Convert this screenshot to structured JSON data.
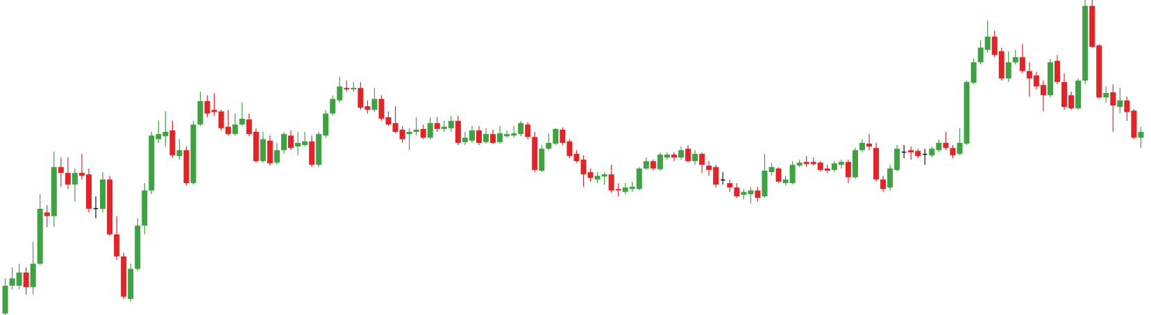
{
  "chart_data": {
    "type": "candlestick",
    "colors": {
      "up": "#3fa142",
      "down": "#e02428",
      "unchanged": "#111111"
    },
    "ylim": [
      24,
      454
    ],
    "open": [
      26,
      64,
      64,
      82,
      62,
      94,
      164,
      159,
      226,
      218,
      202,
      218,
      216,
      170,
      169,
      209,
      134,
      104,
      46,
      87,
      146,
      194,
      264,
      268,
      276,
      241,
      249,
      204,
      284,
      316,
      304,
      302,
      281,
      271,
      284,
      291,
      274,
      234,
      262,
      232,
      249,
      269,
      254,
      256,
      261,
      229,
      269,
      299,
      317,
      334,
      332,
      334,
      309,
      304,
      319,
      294,
      286,
      277,
      271,
      274,
      278,
      266,
      286,
      278,
      279,
      289,
      260,
      262,
      276,
      260,
      271,
      260,
      268,
      269,
      271,
      284,
      267,
      221,
      251,
      258,
      277,
      261,
      244,
      236,
      219,
      209,
      213,
      216,
      196,
      192,
      196,
      196,
      224,
      234,
      223,
      239,
      243,
      239,
      251,
      234,
      244,
      228,
      226,
      209,
      204,
      198,
      188,
      189,
      194,
      186,
      219,
      224,
      204,
      204,
      228,
      233,
      233,
      232,
      224,
      222,
      229,
      233,
      212,
      249,
      258,
      252,
      209,
      198,
      222,
      247,
      249,
      248,
      244,
      242,
      249,
      259,
      252,
      244,
      258,
      341,
      369,
      386,
      404,
      384,
      347,
      369,
      376,
      357,
      351,
      338,
      324,
      371,
      342,
      324,
      306,
      344,
      446,
      392,
      321,
      328,
      308,
      317,
      303,
      266
    ],
    "high": [
      74,
      89,
      94,
      89,
      124,
      189,
      174,
      247,
      239,
      239,
      224,
      244,
      224,
      186,
      219,
      214,
      159,
      109,
      94,
      156,
      204,
      274,
      289,
      302,
      289,
      264,
      254,
      289,
      329,
      324,
      327,
      304,
      304,
      299,
      314,
      299,
      279,
      274,
      269,
      259,
      274,
      276,
      274,
      274,
      269,
      274,
      304,
      324,
      349,
      344,
      342,
      342,
      317,
      334,
      324,
      302,
      309,
      282,
      279,
      294,
      284,
      294,
      294,
      289,
      296,
      296,
      274,
      282,
      282,
      279,
      277,
      282,
      276,
      282,
      289,
      287,
      274,
      256,
      272,
      279,
      280,
      264,
      249,
      242,
      224,
      219,
      219,
      229,
      204,
      204,
      206,
      226,
      239,
      236,
      246,
      246,
      246,
      254,
      256,
      249,
      246,
      234,
      229,
      219,
      209,
      204,
      196,
      199,
      199,
      244,
      232,
      226,
      214,
      234,
      236,
      241,
      239,
      234,
      229,
      234,
      236,
      236,
      252,
      264,
      271,
      259,
      214,
      229,
      256,
      256,
      254,
      251,
      251,
      254,
      264,
      274,
      256,
      279,
      344,
      374,
      399,
      426,
      412,
      389,
      384,
      386,
      394,
      369,
      356,
      344,
      374,
      379,
      354,
      329,
      347,
      454,
      454,
      394,
      336,
      339,
      334,
      322,
      305,
      281
    ],
    "low": [
      24,
      59,
      59,
      52,
      52,
      92,
      144,
      144,
      199,
      196,
      179,
      209,
      164,
      156,
      164,
      132,
      99,
      46,
      42,
      84,
      134,
      189,
      259,
      254,
      239,
      236,
      201,
      202,
      282,
      294,
      296,
      276,
      269,
      269,
      282,
      268,
      232,
      232,
      228,
      229,
      244,
      249,
      242,
      254,
      226,
      226,
      266,
      296,
      314,
      329,
      329,
      304,
      299,
      301,
      289,
      282,
      272,
      259,
      249,
      269,
      264,
      264,
      274,
      274,
      274,
      256,
      256,
      259,
      256,
      258,
      257,
      258,
      266,
      266,
      268,
      264,
      219,
      219,
      249,
      256,
      256,
      238,
      232,
      199,
      206,
      204,
      202,
      191,
      186,
      189,
      192,
      194,
      222,
      221,
      221,
      236,
      234,
      236,
      232,
      229,
      218,
      214,
      198,
      202,
      192,
      184,
      182,
      176,
      179,
      184,
      214,
      204,
      201,
      202,
      226,
      226,
      228,
      220,
      218,
      219,
      224,
      204,
      210,
      246,
      249,
      206,
      192,
      194,
      220,
      238,
      236,
      238,
      229,
      239,
      246,
      249,
      238,
      242,
      256,
      339,
      366,
      382,
      376,
      344,
      342,
      366,
      354,
      322,
      332,
      302,
      321,
      339,
      304,
      304,
      304,
      339,
      388,
      319,
      314,
      274,
      299,
      289,
      264,
      252
    ],
    "close": [
      64,
      74,
      82,
      62,
      94,
      169,
      159,
      226,
      218,
      202,
      218,
      214,
      169,
      170,
      209,
      134,
      104,
      49,
      87,
      146,
      194,
      269,
      271,
      274,
      242,
      249,
      204,
      284,
      316,
      299,
      301,
      279,
      271,
      284,
      292,
      271,
      234,
      264,
      231,
      249,
      271,
      252,
      259,
      261,
      229,
      271,
      299,
      319,
      336,
      332,
      334,
      307,
      304,
      319,
      292,
      284,
      274,
      264,
      274,
      277,
      266,
      286,
      278,
      281,
      289,
      259,
      266,
      276,
      259,
      271,
      259,
      272,
      271,
      272,
      286,
      267,
      222,
      251,
      259,
      278,
      259,
      241,
      234,
      216,
      211,
      214,
      216,
      194,
      194,
      198,
      199,
      224,
      234,
      224,
      243,
      243,
      239,
      249,
      234,
      244,
      229,
      222,
      202,
      209,
      198,
      186,
      192,
      194,
      184,
      221,
      226,
      206,
      209,
      229,
      232,
      230,
      230,
      222,
      221,
      231,
      233,
      212,
      249,
      259,
      254,
      209,
      196,
      224,
      251,
      247,
      246,
      241,
      244,
      251,
      259,
      252,
      242,
      259,
      342,
      369,
      389,
      404,
      379,
      347,
      369,
      376,
      357,
      347,
      336,
      324,
      369,
      342,
      308,
      306,
      344,
      446,
      390,
      321,
      327,
      310,
      317,
      301,
      266,
      274
    ]
  }
}
